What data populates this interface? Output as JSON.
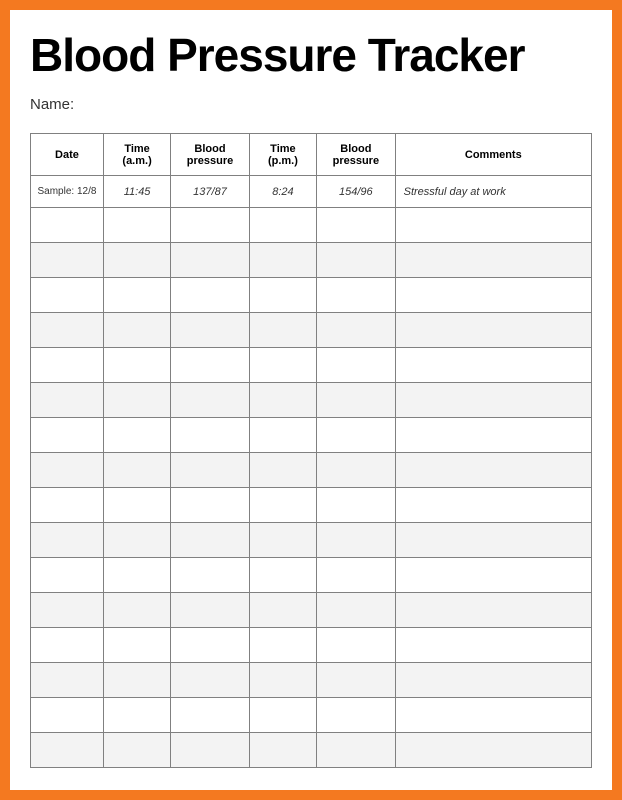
{
  "title": "Blood Pressure Tracker",
  "name_label": "Name:",
  "border_color": "#f47920",
  "background_color": "#ffffff",
  "grid_color": "#808080",
  "alt_row_bg": "#f3f3f3",
  "title_fontsize": 46,
  "header_fontsize": 11,
  "cell_fontsize": 11,
  "columns": [
    {
      "key": "date",
      "label": "Date",
      "width_pct": 13
    },
    {
      "key": "time_am",
      "label": "Time (a.m.)",
      "width_pct": 12
    },
    {
      "key": "bp_am",
      "label": "Blood pressure",
      "width_pct": 14
    },
    {
      "key": "time_pm",
      "label": "Time (p.m.)",
      "width_pct": 12
    },
    {
      "key": "bp_pm",
      "label": "Blood pressure",
      "width_pct": 14
    },
    {
      "key": "comments",
      "label": "Comments",
      "width_pct": 35
    }
  ],
  "sample_row": {
    "date": "Sample: 12/8",
    "time_am": "11:45",
    "bp_am": "137/87",
    "time_pm": "8:24",
    "bp_pm": "154/96",
    "comments": "Stressful day at work"
  },
  "empty_row_count": 16
}
